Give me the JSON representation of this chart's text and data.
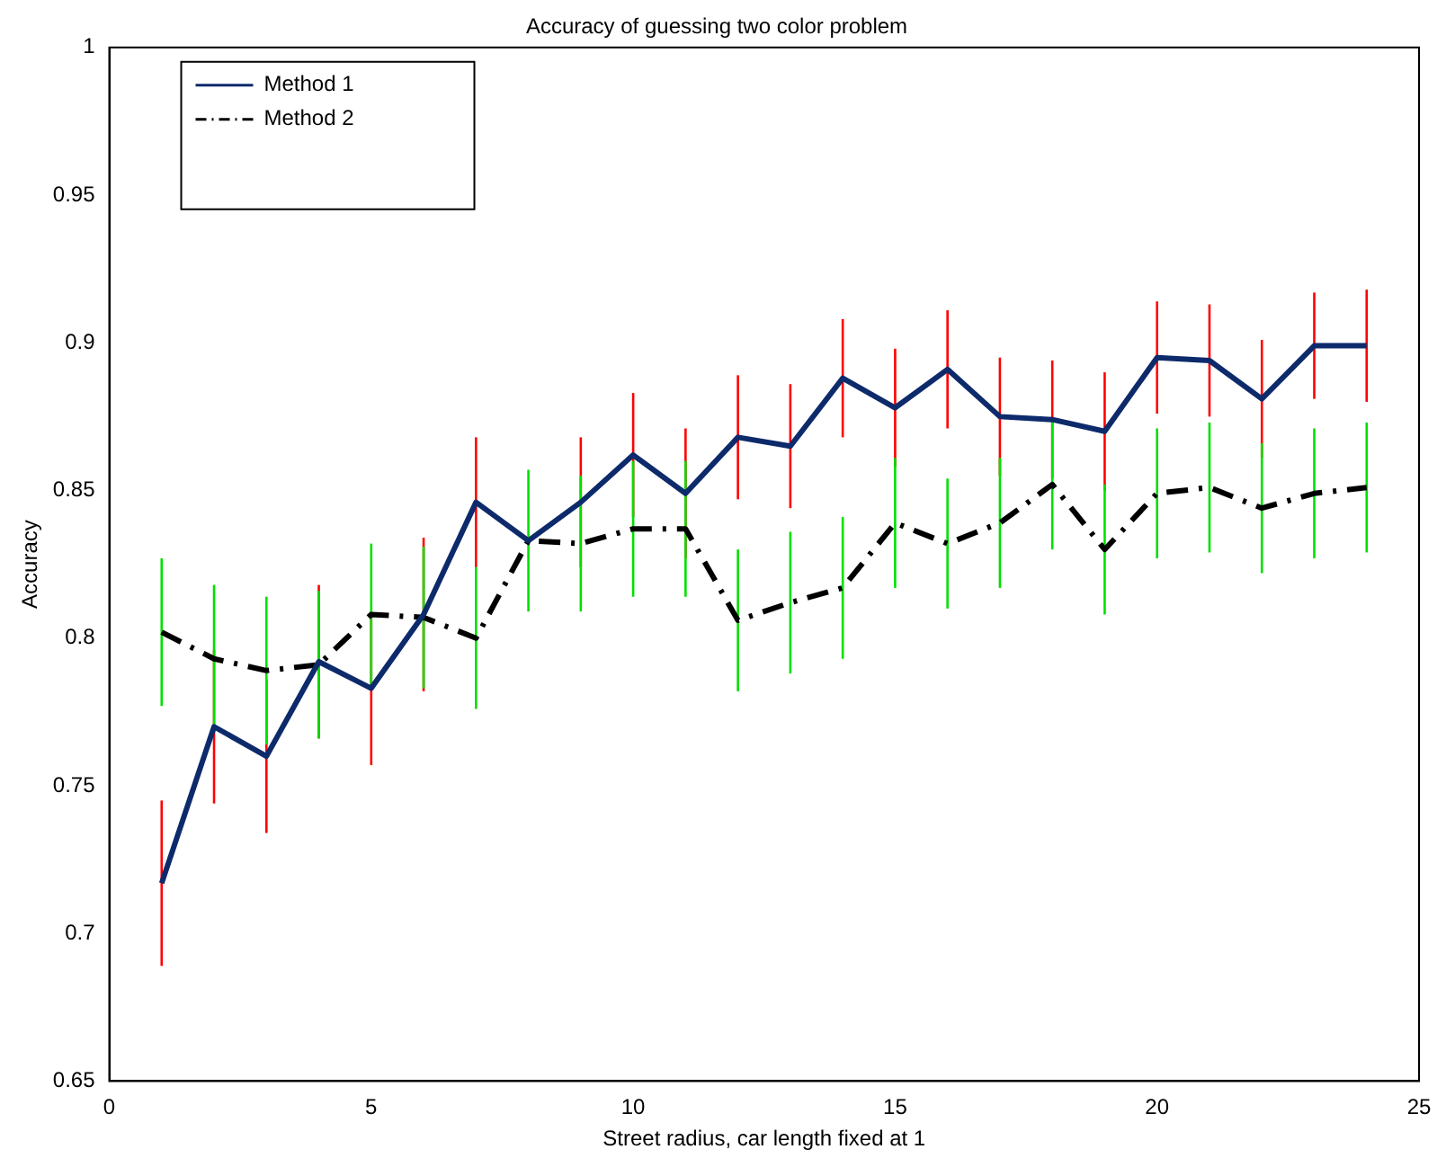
{
  "chart_data": {
    "type": "line",
    "title": "Accuracy of guessing two color problem",
    "xlabel": "Street radius, car length fixed at 1",
    "ylabel": "Accuracy",
    "x": [
      1,
      2,
      3,
      4,
      5,
      6,
      7,
      8,
      9,
      10,
      11,
      12,
      13,
      14,
      15,
      16,
      17,
      18,
      19,
      20,
      21,
      22,
      23,
      24
    ],
    "series": [
      {
        "name": "Method 1",
        "color": "#0d2a6b",
        "line_style": "solid",
        "values": [
          0.717,
          0.77,
          0.76,
          0.792,
          0.783,
          0.808,
          0.846,
          0.833,
          0.846,
          0.862,
          0.849,
          0.868,
          0.865,
          0.888,
          0.878,
          0.891,
          0.875,
          0.874,
          0.87,
          0.895,
          0.894,
          0.881,
          0.899,
          0.899
        ],
        "errors": [
          0.028,
          0.026,
          0.026,
          0.026,
          0.026,
          0.026,
          0.022,
          null,
          0.022,
          0.021,
          0.022,
          0.021,
          0.021,
          0.02,
          0.02,
          0.02,
          0.02,
          0.02,
          0.02,
          0.019,
          0.019,
          0.02,
          0.018,
          0.019
        ]
      },
      {
        "name": "Method 2",
        "color": "#000000",
        "line_style": "dashed",
        "values": [
          0.802,
          0.793,
          0.789,
          0.791,
          0.808,
          0.807,
          0.8,
          0.833,
          0.832,
          0.837,
          0.837,
          0.806,
          0.812,
          0.817,
          0.839,
          0.832,
          0.839,
          0.852,
          0.83,
          0.849,
          0.851,
          0.844,
          0.849,
          0.851
        ],
        "errors": [
          0.025,
          0.025,
          0.025,
          0.025,
          0.024,
          0.024,
          0.024,
          0.024,
          0.023,
          0.023,
          0.023,
          0.024,
          0.024,
          0.024,
          0.022,
          0.022,
          0.022,
          0.022,
          0.022,
          0.022,
          0.022,
          0.022,
          0.022,
          0.022
        ]
      }
    ],
    "xlim": [
      0,
      25
    ],
    "xticks": [
      0,
      5,
      10,
      15,
      20,
      25
    ],
    "ylim": [
      0.65,
      1
    ],
    "yticks": [
      0.65,
      0.7,
      0.75,
      0.8,
      0.85,
      0.9,
      0.95,
      1
    ],
    "grid": false,
    "legend": "top left",
    "marker": "none"
  }
}
